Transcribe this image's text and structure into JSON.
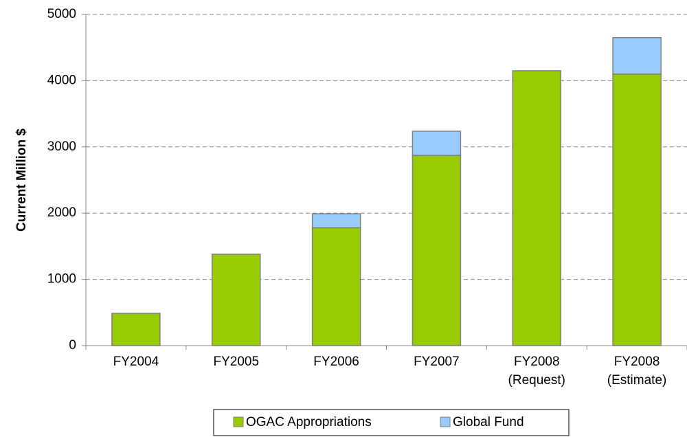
{
  "chart_data": {
    "type": "stacked_bar",
    "ylabel": "Current Million $",
    "categories": [
      "FY2004",
      "FY2005",
      "FY2006",
      "FY2007",
      "FY2008 (Request)",
      "FY2008 (Estimate)"
    ],
    "series": [
      {
        "name": "OGAC Appropriations",
        "color": "#99cc00",
        "values": [
          488,
          1380,
          1780,
          2873,
          4150,
          4100
        ]
      },
      {
        "name": "Global Fund",
        "color": "#99ccff",
        "values": [
          0,
          0,
          210,
          364,
          0,
          550
        ]
      }
    ],
    "ylim": [
      0,
      5000
    ],
    "yticks": [
      0,
      1000,
      2000,
      3000,
      4000,
      5000
    ],
    "grid": true
  }
}
